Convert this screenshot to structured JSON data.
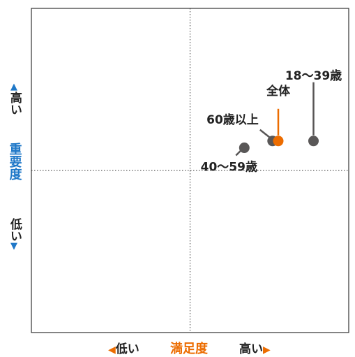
{
  "chart_data": {
    "type": "scatter",
    "title": "",
    "x_axis": {
      "label": "満足度",
      "low_label": "低い",
      "high_label": "高い"
    },
    "y_axis": {
      "label": "重要度",
      "low_label": "低い",
      "high_label": "高い"
    },
    "xlim": [
      0,
      100
    ],
    "ylim": [
      0,
      100
    ],
    "quadrant_lines": {
      "x": 50,
      "y": 50
    },
    "series": [
      {
        "points": [
          {
            "label": "全体",
            "x": 77.8,
            "y": 59.1,
            "color": "#ec6c00"
          },
          {
            "label": "18〜39歳",
            "x": 88.9,
            "y": 59.1,
            "color": "#595757"
          },
          {
            "label": "60歳以上",
            "x": 76.0,
            "y": 59.1,
            "color": "#595757"
          },
          {
            "label": "40〜59歳",
            "x": 67.1,
            "y": 57.0,
            "color": "#595757"
          }
        ]
      }
    ],
    "colors": {
      "accent": "#ec6c00",
      "axis_label": "#1f78c8",
      "marker": "#595757"
    }
  }
}
